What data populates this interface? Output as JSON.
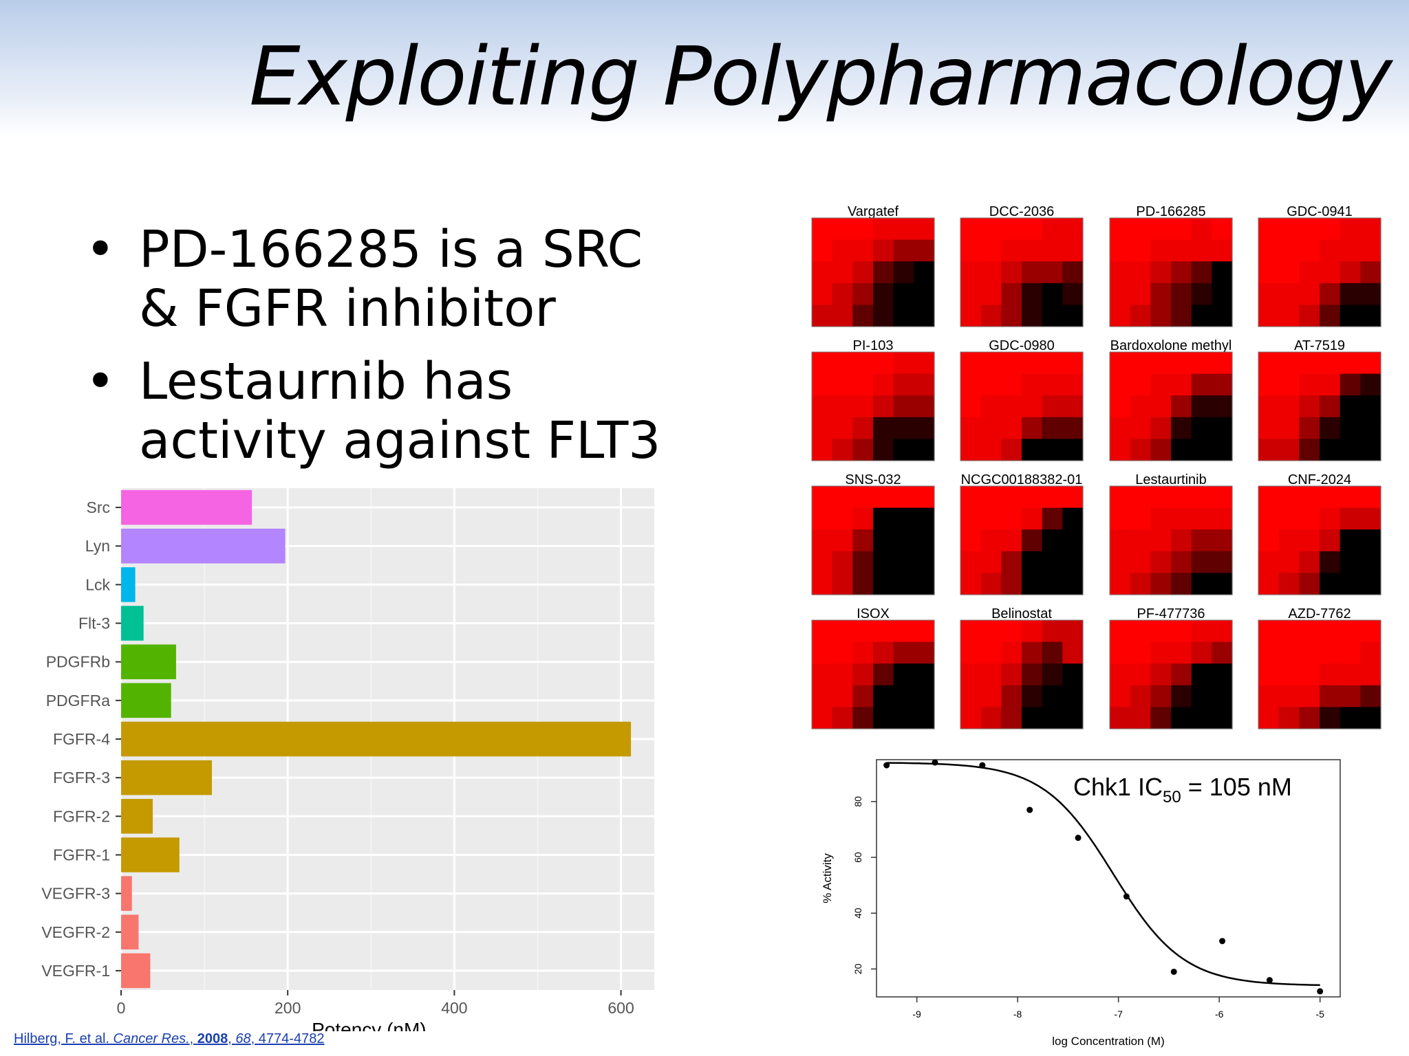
{
  "slide": {
    "title": "Exploiting Polypharmacology",
    "bullets": [
      "PD-166285 is a SRC & FGFR inhibitor",
      "Lestaurnib has activity against FLT3"
    ],
    "citation": {
      "authors": "Hilberg, F. et al.",
      "journal": "Cancer Res.",
      "year": "2008",
      "volume": "68",
      "pages": "4774-4782",
      "sep1": ", ",
      "sep2": ", "
    }
  },
  "chart_data": [
    {
      "type": "bar",
      "orientation": "horizontal",
      "categories": [
        "Src",
        "Lyn",
        "Lck",
        "Flt-3",
        "PDGFRb",
        "PDGFRa",
        "FGFR-4",
        "FGFR-3",
        "FGFR-2",
        "FGFR-1",
        "VEGFR-3",
        "VEGFR-2",
        "VEGFR-1"
      ],
      "values": [
        157,
        197,
        17,
        27,
        66,
        60,
        612,
        109,
        38,
        70,
        13,
        21,
        35
      ],
      "colors": [
        "#f564e3",
        "#b385ff",
        "#00b6eb",
        "#00c094",
        "#53b400",
        "#53b400",
        "#c49a00",
        "#c49a00",
        "#c49a00",
        "#c49a00",
        "#f8766d",
        "#f8766d",
        "#f8766d"
      ],
      "xlabel": "Potency (nM)",
      "ylabel": "",
      "xlim": [
        0,
        640
      ],
      "xticks": [
        0,
        200,
        400,
        600
      ],
      "grid": true
    },
    {
      "type": "heatmap",
      "panels": [
        {
          "name": "Vargatef",
          "levels": [
            [
              0,
              0,
              0,
              1,
              1,
              1
            ],
            [
              0,
              1,
              1,
              2,
              3,
              3
            ],
            [
              1,
              1,
              2,
              4,
              5,
              6
            ],
            [
              1,
              2,
              3,
              5,
              6,
              6
            ],
            [
              2,
              2,
              4,
              5,
              6,
              6
            ]
          ]
        },
        {
          "name": "DCC-2036",
          "levels": [
            [
              0,
              0,
              0,
              0,
              1,
              1
            ],
            [
              0,
              0,
              1,
              1,
              1,
              1
            ],
            [
              1,
              1,
              2,
              3,
              3,
              4
            ],
            [
              1,
              1,
              3,
              5,
              6,
              5
            ],
            [
              1,
              2,
              3,
              5,
              6,
              6
            ]
          ]
        },
        {
          "name": "PD-166285",
          "levels": [
            [
              0,
              0,
              0,
              0,
              1,
              0
            ],
            [
              0,
              0,
              1,
              1,
              1,
              1
            ],
            [
              1,
              1,
              2,
              3,
              4,
              6
            ],
            [
              1,
              1,
              3,
              4,
              5,
              6
            ],
            [
              1,
              2,
              3,
              4,
              6,
              6
            ]
          ]
        },
        {
          "name": "GDC-0941",
          "levels": [
            [
              0,
              0,
              0,
              0,
              1,
              1
            ],
            [
              0,
              0,
              0,
              1,
              1,
              1
            ],
            [
              0,
              0,
              1,
              1,
              2,
              3
            ],
            [
              1,
              1,
              1,
              3,
              5,
              5
            ],
            [
              1,
              1,
              2,
              4,
              6,
              6
            ]
          ]
        },
        {
          "name": "PI-103",
          "levels": [
            [
              0,
              0,
              0,
              0,
              1,
              1
            ],
            [
              0,
              0,
              0,
              1,
              2,
              2
            ],
            [
              1,
              1,
              1,
              2,
              3,
              3
            ],
            [
              1,
              1,
              2,
              5,
              5,
              5
            ],
            [
              1,
              2,
              3,
              5,
              6,
              6
            ]
          ]
        },
        {
          "name": "GDC-0980",
          "levels": [
            [
              0,
              0,
              0,
              0,
              0,
              0
            ],
            [
              0,
              0,
              0,
              1,
              1,
              1
            ],
            [
              0,
              1,
              1,
              1,
              2,
              2
            ],
            [
              1,
              1,
              1,
              3,
              4,
              4
            ],
            [
              1,
              1,
              2,
              6,
              6,
              6
            ]
          ]
        },
        {
          "name": "Bardoxolone methyl",
          "levels": [
            [
              0,
              0,
              0,
              0,
              0,
              0
            ],
            [
              0,
              0,
              1,
              1,
              3,
              3
            ],
            [
              0,
              1,
              1,
              3,
              5,
              5
            ],
            [
              1,
              1,
              2,
              5,
              6,
              6
            ],
            [
              1,
              2,
              3,
              6,
              6,
              6
            ]
          ]
        },
        {
          "name": "AT-7519",
          "levels": [
            [
              0,
              0,
              0,
              0,
              0,
              0
            ],
            [
              0,
              0,
              1,
              1,
              4,
              5
            ],
            [
              1,
              1,
              2,
              3,
              6,
              6
            ],
            [
              1,
              1,
              3,
              5,
              6,
              6
            ],
            [
              2,
              2,
              4,
              6,
              6,
              6
            ]
          ]
        },
        {
          "name": "SNS-032",
          "levels": [
            [
              0,
              0,
              0,
              0,
              0,
              0
            ],
            [
              0,
              0,
              1,
              6,
              6,
              6
            ],
            [
              1,
              1,
              3,
              6,
              6,
              6
            ],
            [
              1,
              2,
              4,
              6,
              6,
              6
            ],
            [
              1,
              2,
              4,
              6,
              6,
              6
            ]
          ]
        },
        {
          "name": "NCGC00188382-01",
          "levels": [
            [
              0,
              0,
              0,
              0,
              0,
              0
            ],
            [
              0,
              0,
              0,
              1,
              4,
              6
            ],
            [
              0,
              1,
              1,
              4,
              6,
              6
            ],
            [
              1,
              1,
              3,
              6,
              6,
              6
            ],
            [
              1,
              2,
              3,
              6,
              6,
              6
            ]
          ]
        },
        {
          "name": "Lestaurtinib",
          "levels": [
            [
              0,
              0,
              0,
              0,
              0,
              0
            ],
            [
              0,
              0,
              1,
              1,
              1,
              1
            ],
            [
              1,
              1,
              1,
              2,
              3,
              3
            ],
            [
              1,
              1,
              2,
              3,
              4,
              4
            ],
            [
              1,
              2,
              3,
              4,
              6,
              6
            ]
          ]
        },
        {
          "name": "CNF-2024",
          "levels": [
            [
              0,
              0,
              0,
              0,
              0,
              0
            ],
            [
              0,
              0,
              0,
              1,
              2,
              2
            ],
            [
              0,
              1,
              1,
              2,
              6,
              6
            ],
            [
              1,
              1,
              2,
              5,
              6,
              6
            ],
            [
              1,
              2,
              3,
              6,
              6,
              6
            ]
          ]
        },
        {
          "name": "ISOX",
          "levels": [
            [
              0,
              0,
              0,
              0,
              0,
              0
            ],
            [
              0,
              0,
              1,
              2,
              3,
              3
            ],
            [
              1,
              1,
              2,
              4,
              6,
              6
            ],
            [
              1,
              1,
              3,
              6,
              6,
              6
            ],
            [
              1,
              2,
              4,
              6,
              6,
              6
            ]
          ]
        },
        {
          "name": "Belinostat",
          "levels": [
            [
              0,
              0,
              0,
              1,
              2,
              2
            ],
            [
              0,
              0,
              1,
              3,
              4,
              2
            ],
            [
              1,
              1,
              2,
              4,
              5,
              6
            ],
            [
              1,
              1,
              3,
              5,
              6,
              6
            ],
            [
              1,
              2,
              3,
              6,
              6,
              6
            ]
          ]
        },
        {
          "name": "PF-477736",
          "levels": [
            [
              0,
              0,
              0,
              0,
              1,
              1
            ],
            [
              0,
              0,
              1,
              1,
              2,
              3
            ],
            [
              1,
              1,
              2,
              3,
              6,
              6
            ],
            [
              1,
              2,
              3,
              5,
              6,
              6
            ],
            [
              2,
              2,
              4,
              6,
              6,
              6
            ]
          ]
        },
        {
          "name": "AZD-7762",
          "levels": [
            [
              0,
              0,
              0,
              0,
              0,
              0
            ],
            [
              0,
              0,
              0,
              0,
              0,
              1
            ],
            [
              0,
              0,
              0,
              1,
              1,
              1
            ],
            [
              1,
              1,
              1,
              3,
              3,
              4
            ],
            [
              1,
              2,
              3,
              5,
              6,
              6
            ]
          ]
        }
      ]
    },
    {
      "type": "scatter",
      "fit": "sigmoid",
      "annotation": {
        "main": "Chk1 IC",
        "sub": "50",
        "rest": " = 105 nM"
      },
      "xlabel": "log Concentration (M)",
      "ylabel": "% Activity",
      "xlim": [
        -9.4,
        -4.8
      ],
      "ylim": [
        10,
        95
      ],
      "xticks": [
        -9,
        -8,
        -7,
        -6,
        -5
      ],
      "yticks": [
        20,
        40,
        60,
        80
      ],
      "points": [
        {
          "x": -9.3,
          "y": 93
        },
        {
          "x": -8.82,
          "y": 94
        },
        {
          "x": -8.35,
          "y": 93
        },
        {
          "x": -7.88,
          "y": 77
        },
        {
          "x": -7.4,
          "y": 67
        },
        {
          "x": -6.92,
          "y": 46
        },
        {
          "x": -6.45,
          "y": 19
        },
        {
          "x": -5.97,
          "y": 30
        },
        {
          "x": -5.5,
          "y": 16
        },
        {
          "x": -5.0,
          "y": 12
        }
      ],
      "curve": {
        "top": 94,
        "bottom": 14,
        "log_ic50": -7.05,
        "hill": 1.25
      }
    }
  ]
}
